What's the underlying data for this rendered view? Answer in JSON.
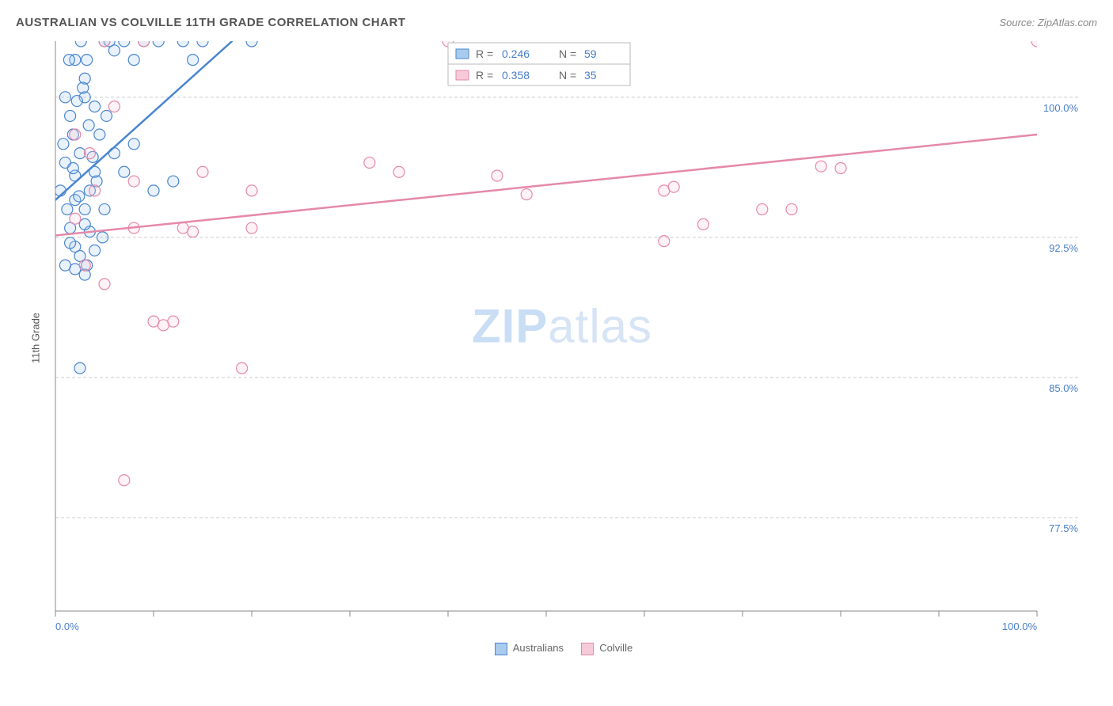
{
  "chart": {
    "type": "scatter",
    "title": "AUSTRALIAN VS COLVILLE 11TH GRADE CORRELATION CHART",
    "source_label": "Source: ZipAtlas.com",
    "y_axis_label": "11th Grade",
    "background_color": "#ffffff",
    "plot_border_color": "#888888",
    "grid_color": "#cccccc",
    "grid_dash": "4 3",
    "marker_radius": 7,
    "marker_stroke_width": 1.2,
    "marker_fill_opacity": 0.25,
    "xlim": [
      0,
      100
    ],
    "ylim": [
      72.5,
      103
    ],
    "x_ticks": [
      0,
      10,
      20,
      30,
      40,
      50,
      60,
      70,
      80,
      90,
      100
    ],
    "x_tick_labels": {
      "0": "0.0%",
      "100": "100.0%"
    },
    "y_grid": [
      77.5,
      85.0,
      92.5,
      100.0
    ],
    "y_tick_labels": [
      "77.5%",
      "85.0%",
      "92.5%",
      "100.0%"
    ],
    "tick_label_color": "#4a7ec9",
    "tick_label_fontsize": 13,
    "watermark": {
      "text_bold": "ZIP",
      "text_light": "atlas"
    },
    "series": {
      "australians": {
        "label": "Australians",
        "color_stroke": "#4a86d0",
        "color_fill": "#a9cbee",
        "points": [
          [
            2,
            94.5
          ],
          [
            1.5,
            99
          ],
          [
            3,
            100
          ],
          [
            3.5,
            95
          ],
          [
            2.5,
            97
          ],
          [
            1,
            96.5
          ],
          [
            4,
            96
          ],
          [
            2,
            102
          ],
          [
            3,
            101
          ],
          [
            5,
            103
          ],
          [
            6,
            102.5
          ],
          [
            4.5,
            98
          ],
          [
            1.5,
            93
          ],
          [
            2,
            92
          ],
          [
            3,
            94
          ],
          [
            2.5,
            91.5
          ],
          [
            1,
            91
          ],
          [
            3.5,
            92.8
          ],
          [
            2,
            95.8
          ],
          [
            5.5,
            103
          ],
          [
            4,
            99.5
          ],
          [
            1.8,
            98
          ],
          [
            2.2,
            99.8
          ],
          [
            6,
            97
          ],
          [
            7,
            96
          ],
          [
            8,
            97.5
          ],
          [
            1,
            100
          ],
          [
            2.8,
            100.5
          ],
          [
            3.2,
            102
          ],
          [
            7,
            103
          ],
          [
            8,
            102
          ],
          [
            9,
            103
          ],
          [
            0.5,
            95
          ],
          [
            1.2,
            94
          ],
          [
            0.8,
            97.5
          ],
          [
            3.8,
            96.8
          ],
          [
            4.2,
            95.5
          ],
          [
            2,
            90.8
          ],
          [
            3,
            93.2
          ],
          [
            4.8,
            92.5
          ],
          [
            5.2,
            99
          ],
          [
            1.4,
            102
          ],
          [
            2.6,
            103
          ],
          [
            3.4,
            98.5
          ],
          [
            10,
            95
          ],
          [
            10.5,
            103
          ],
          [
            12,
            95.5
          ],
          [
            13,
            103
          ],
          [
            15,
            103
          ],
          [
            20,
            103
          ],
          [
            14,
            102
          ],
          [
            2.5,
            85.5
          ],
          [
            1.5,
            92.2
          ],
          [
            3.2,
            91
          ],
          [
            4,
            91.8
          ],
          [
            5,
            94
          ],
          [
            1.8,
            96.2
          ],
          [
            2.4,
            94.7
          ],
          [
            3,
            90.5
          ]
        ],
        "trend": {
          "x1": 0,
          "y1": 94.5,
          "x2": 18,
          "y2": 103,
          "dash_x2": 25,
          "dash_y2": 106,
          "width": 2.5
        }
      },
      "colville": {
        "label": "Colville",
        "color_stroke": "#e589a8",
        "color_fill": "#f6cad9",
        "points": [
          [
            2,
            98
          ],
          [
            4,
            95
          ],
          [
            8,
            93
          ],
          [
            3,
            91
          ],
          [
            5,
            90
          ],
          [
            6,
            99.5
          ],
          [
            10,
            88
          ],
          [
            12,
            88
          ],
          [
            13,
            93
          ],
          [
            15,
            96
          ],
          [
            19,
            85.5
          ],
          [
            20,
            93
          ],
          [
            20,
            95
          ],
          [
            32,
            96.5
          ],
          [
            35,
            96
          ],
          [
            40,
            103
          ],
          [
            45,
            95.8
          ],
          [
            48,
            94.8
          ],
          [
            62,
            95
          ],
          [
            63,
            95.2
          ],
          [
            66,
            93.2
          ],
          [
            72,
            94
          ],
          [
            75,
            94
          ],
          [
            78,
            96.3
          ],
          [
            80,
            96.2
          ],
          [
            5,
            103
          ],
          [
            9,
            103
          ],
          [
            2,
            93.5
          ],
          [
            3.5,
            97
          ],
          [
            14,
            92.8
          ],
          [
            11,
            87.8
          ],
          [
            7,
            79.5
          ],
          [
            8,
            95.5
          ],
          [
            100,
            103
          ],
          [
            62,
            92.3
          ]
        ],
        "trend": {
          "x1": 0,
          "y1": 92.6,
          "x2": 100,
          "y2": 98,
          "width": 2.5
        }
      }
    },
    "stats_legend": {
      "border_color": "#bbbbbb",
      "bg_color": "#ffffff",
      "font_size": 14,
      "value_color": "#4a7ec9",
      "label_color": "#666666",
      "rows": [
        {
          "swatch_stroke": "#4a86d0",
          "swatch_fill": "#a9cbee",
          "r": "0.246",
          "n": "59"
        },
        {
          "swatch_stroke": "#e589a8",
          "swatch_fill": "#f6cad9",
          "r": "0.358",
          "n": "35"
        }
      ]
    }
  }
}
